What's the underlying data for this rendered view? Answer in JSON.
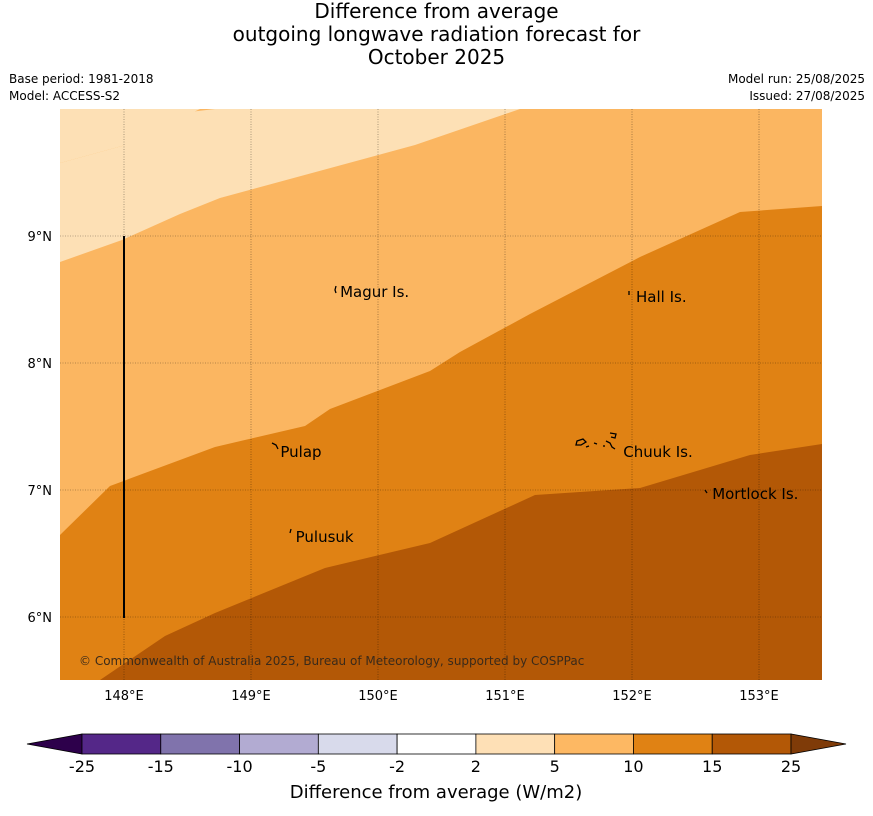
{
  "title": {
    "line1": "Difference from average",
    "line2": "outgoing longwave radiation forecast for",
    "line3": "October 2025"
  },
  "meta": {
    "base_period": "Base period: 1981-2018",
    "model": "Model: ACCESS-S2",
    "model_run": "Model run: 25/08/2025",
    "issued": "Issued: 27/08/2025"
  },
  "map": {
    "lon_range": [
      147.5,
      153.5
    ],
    "lat_range": [
      5.5,
      10.0
    ],
    "lon_ticks": [
      {
        "value": 148,
        "label": "148°E"
      },
      {
        "value": 149,
        "label": "149°E"
      },
      {
        "value": 150,
        "label": "150°E"
      },
      {
        "value": 151,
        "label": "151°E"
      },
      {
        "value": 152,
        "label": "152°E"
      },
      {
        "value": 153,
        "label": "153°E"
      }
    ],
    "lat_ticks": [
      {
        "value": 9,
        "label": "9°N"
      },
      {
        "value": 8,
        "label": "8°N"
      },
      {
        "value": 7,
        "label": "7°N"
      },
      {
        "value": 6,
        "label": "6°N"
      }
    ],
    "places": [
      {
        "name": "Magur Is.",
        "lon": 149.67,
        "lat": 8.56
      },
      {
        "name": "Hall Is.",
        "lon": 152.0,
        "lat": 8.52
      },
      {
        "name": "Pulap",
        "lon": 149.2,
        "lat": 7.3
      },
      {
        "name": "Chuuk Is.",
        "lon": 151.9,
        "lat": 7.3
      },
      {
        "name": "Mortlock Is.",
        "lon": 152.6,
        "lat": 6.97
      },
      {
        "name": "Pulusuk",
        "lon": 149.32,
        "lat": 6.63
      }
    ],
    "copyright": "© Commonwealth of Australia 2025, Bureau of Meteorology, supported by COSPPac",
    "zone_colors": [
      "#fde0b5",
      "#fbb661",
      "#e08214",
      "#b35806"
    ]
  },
  "colorbar": {
    "ticks": [
      "-25",
      "-15",
      "-10",
      "-5",
      "-2",
      "2",
      "5",
      "10",
      "15",
      "25"
    ],
    "colors": [
      "#2d004b",
      "#542788",
      "#8073ac",
      "#b2abd2",
      "#d8daeb",
      "#ffffff",
      "#fee0b6",
      "#fdb863",
      "#e08214",
      "#b35806",
      "#7f3b08"
    ],
    "label": "Difference from average (W/m2)"
  }
}
